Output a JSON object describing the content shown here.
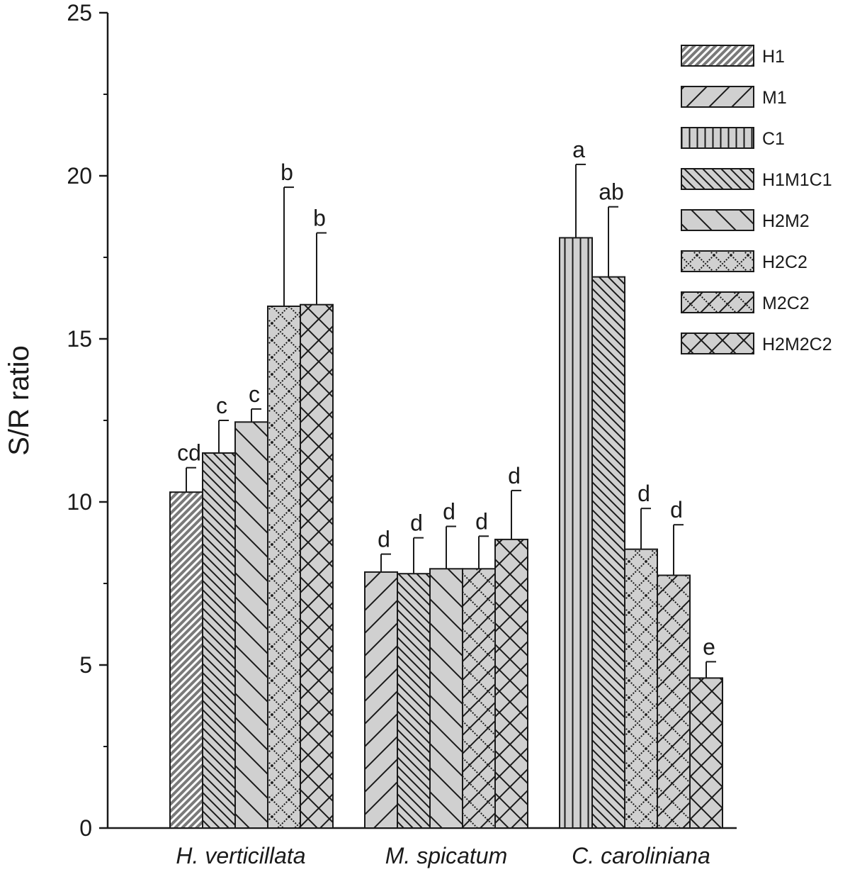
{
  "chart_data": {
    "type": "bar",
    "ylabel": "S/R ratio",
    "ylim": [
      0,
      25
    ],
    "yticks": [
      0,
      5,
      10,
      15,
      20,
      25
    ],
    "grid": false,
    "legend_position": "top-right",
    "legend": [
      "H1",
      "M1",
      "C1",
      "H1M1C1",
      "H2M2",
      "H2C2",
      "M2C2",
      "H2M2C2"
    ],
    "groups": [
      {
        "name": "H. verticillata",
        "bars": [
          {
            "series": "H1",
            "value": 10.3,
            "error": 0.75,
            "label": "cd"
          },
          {
            "series": "H1M1C1",
            "value": 11.5,
            "error": 1.0,
            "label": "c"
          },
          {
            "series": "H2M2",
            "value": 12.45,
            "error": 0.4,
            "label": "c"
          },
          {
            "series": "H2C2",
            "value": 16.0,
            "error": 3.65,
            "label": "b"
          },
          {
            "series": "H2M2C2",
            "value": 16.05,
            "error": 2.2,
            "label": "b"
          }
        ]
      },
      {
        "name": "M. spicatum",
        "bars": [
          {
            "series": "M1",
            "value": 7.85,
            "error": 0.55,
            "label": "d"
          },
          {
            "series": "H1M1C1",
            "value": 7.8,
            "error": 1.1,
            "label": "d"
          },
          {
            "series": "H2M2",
            "value": 7.95,
            "error": 1.3,
            "label": "d"
          },
          {
            "series": "M2C2",
            "value": 7.95,
            "error": 1.0,
            "label": "d"
          },
          {
            "series": "H2M2C2",
            "value": 8.85,
            "error": 1.5,
            "label": "d"
          }
        ]
      },
      {
        "name": "C. caroliniana",
        "bars": [
          {
            "series": "C1",
            "value": 18.1,
            "error": 2.25,
            "label": "a"
          },
          {
            "series": "H1M1C1",
            "value": 16.9,
            "error": 2.15,
            "label": "ab"
          },
          {
            "series": "H2C2",
            "value": 8.55,
            "error": 1.25,
            "label": "d"
          },
          {
            "series": "M2C2",
            "value": 7.75,
            "error": 1.55,
            "label": "d"
          },
          {
            "series": "H2M2C2",
            "value": 4.6,
            "error": 0.5,
            "label": "e"
          }
        ]
      }
    ],
    "colors": {
      "bar_fill": "#d0d0d0",
      "dark_fill": "#7a7a7a",
      "stroke": "#1a1a1a"
    }
  }
}
